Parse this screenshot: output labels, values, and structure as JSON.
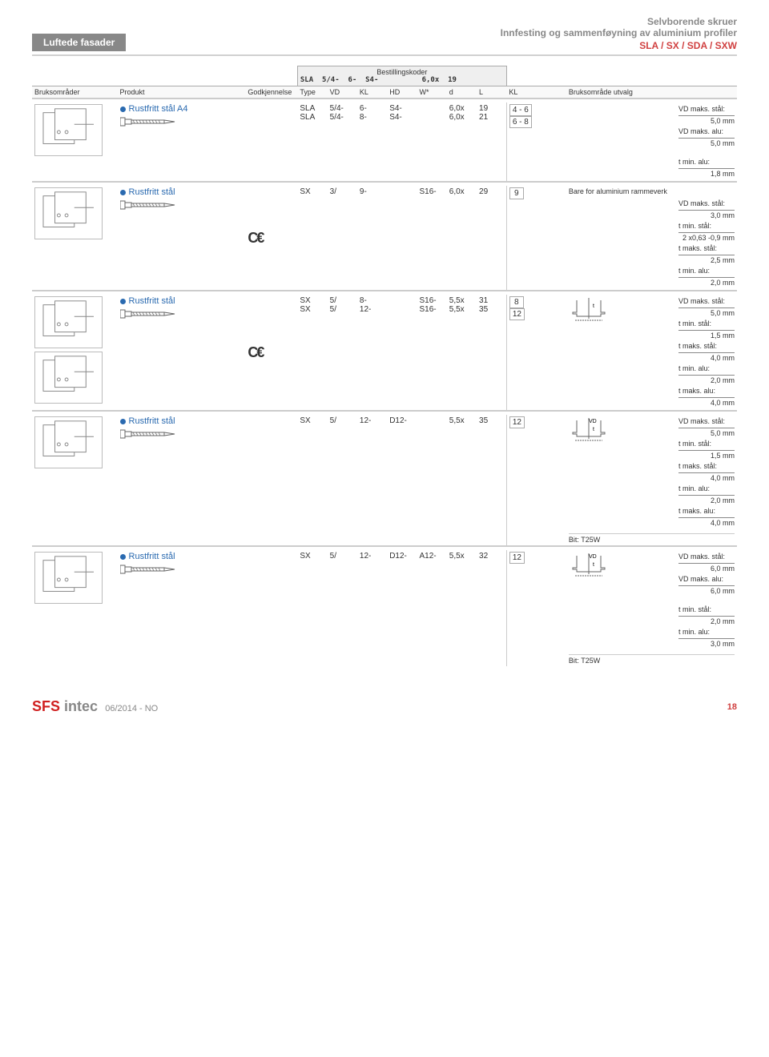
{
  "header": {
    "badge": "Luftede fasader",
    "title1": "Selvborende skruer",
    "title2": "Innfesting og sammenføyning av aluminium profiler",
    "title3": "SLA / SX / SDA / SXW"
  },
  "table_header": {
    "col1": "Bruksområder",
    "col2": "Produkt",
    "col3": "Godkjennelse",
    "code_title": "Bestillingskoder",
    "code_ex": "SLA  5/4-  6-  S4-          6,0x  19",
    "c_type": "Type",
    "c_vd": "VD",
    "c_kl": "KL",
    "c_hd": "HD",
    "c_w": "W*",
    "c_d": "d",
    "c_l": "L",
    "c_kl2": "KL",
    "col_last": "Bruksområde utvalg"
  },
  "rows": [
    {
      "product": "Rustfritt stål A4",
      "codes": [
        [
          "SLA",
          "5/4-",
          "6-",
          "S4-",
          "",
          "6,0x",
          "19",
          "4",
          "-",
          "6"
        ],
        [
          "SLA",
          "5/4-",
          "8-",
          "S4-",
          "",
          "6,0x",
          "21",
          "6",
          "-",
          "8"
        ]
      ],
      "specs": [
        {
          "l": "VD maks. stål:",
          "v": "5,0 mm"
        },
        {
          "l": "VD maks. alu:",
          "v": "5,0 mm"
        },
        {
          "gap": true
        },
        {
          "l": "t min. alu:",
          "v": "1,8 mm"
        }
      ]
    },
    {
      "product": "Rustfritt stål",
      "ce": true,
      "note": "Bare for aluminium rammeverk",
      "codes": [
        [
          "SX",
          "3/",
          "9-",
          "",
          "S16-",
          "6,0x",
          "29",
          "9",
          "",
          ""
        ]
      ],
      "specs": [
        {
          "l": "VD maks. stål:",
          "v": "3,0 mm"
        },
        {
          "l": "t min. stål:",
          "v": "2 x0,63 -0,9 mm"
        },
        {
          "l": "t maks. stål:",
          "v": "2,5 mm"
        },
        {
          "l": "t min. alu:",
          "v": "2,0 mm"
        }
      ]
    },
    {
      "product": "Rustfritt stål",
      "ce": true,
      "thumbs": 2,
      "diag": "t",
      "codes": [
        [
          "SX",
          "5/",
          "8-",
          "",
          "S16-",
          "5,5x",
          "31",
          "8",
          "",
          ""
        ],
        [
          "SX",
          "5/",
          "12-",
          "",
          "S16-",
          "5,5x",
          "35",
          "12",
          "",
          ""
        ]
      ],
      "specs": [
        {
          "l": "VD maks. stål:",
          "v": "5,0 mm"
        },
        {
          "l": "t min. stål:",
          "v": "1,5 mm"
        },
        {
          "l": "t maks. stål:",
          "v": "4,0 mm"
        },
        {
          "l": "t min. alu:",
          "v": "2,0 mm"
        },
        {
          "l": "t maks. alu:",
          "v": "4,0 mm"
        }
      ]
    },
    {
      "product": "Rustfritt stål",
      "diag": "vdt",
      "codes": [
        [
          "SX",
          "5/",
          "12-",
          "D12-",
          "",
          "5,5x",
          "35",
          "12",
          "",
          ""
        ]
      ],
      "specs": [
        {
          "l": "VD maks. stål:",
          "v": "5,0 mm"
        },
        {
          "l": "t min. stål:",
          "v": "1,5 mm"
        },
        {
          "l": "t maks. stål:",
          "v": "4,0 mm"
        },
        {
          "l": "t min. alu:",
          "v": "2,0 mm"
        },
        {
          "l": "t maks. alu:",
          "v": "4,0 mm"
        }
      ],
      "bit": "Bit: T25W"
    },
    {
      "product": "Rustfritt stål",
      "diag": "vdt",
      "codes": [
        [
          "SX",
          "5/",
          "12-",
          "D12-",
          "A12-",
          "5,5x",
          "32",
          "12",
          "",
          ""
        ]
      ],
      "specs": [
        {
          "l": "VD maks. stål:",
          "v": "6,0 mm"
        },
        {
          "l": "VD maks. alu:",
          "v": "6,0 mm"
        },
        {
          "gap": true
        },
        {
          "l": "t min. stål:",
          "v": "2,0 mm"
        },
        {
          "l": "t min. alu:",
          "v": "3,0 mm"
        }
      ],
      "bit": "Bit: T25W"
    }
  ],
  "footer": {
    "logo1": "SFS",
    "logo2": " intec",
    "date": "06/2014 - NO",
    "page": "18"
  }
}
